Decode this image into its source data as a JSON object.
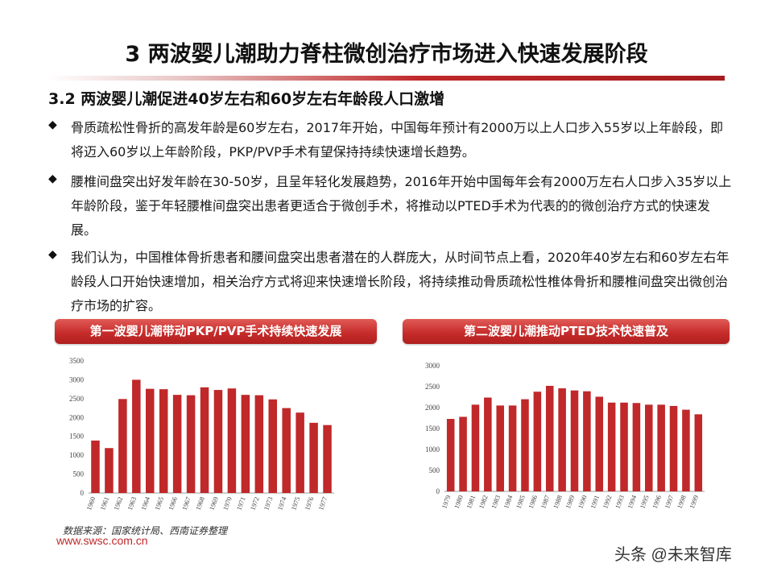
{
  "slide": {
    "title": "3  两波婴儿潮助力脊柱微创治疗市场进入快速发展阶段",
    "subtitle": "3.2 两波婴儿潮促进40岁左右和60岁左右年龄段人口激增",
    "bullets": [
      "骨质疏松性骨折的高发年龄是60岁左右，2017年开始，中国每年预计有2000万以上人口步入55岁以上年龄段，即将迈入60岁以上年龄阶段，PKP/PVP手术有望保持持续快速增长趋势。",
      "腰椎间盘突出好发年龄在30-50岁，且呈年轻化发展趋势，2016年开始中国每年会有2000万左右人口步入35岁以上年龄阶段，鉴于年轻腰椎间盘突出患者更适合于微创手术，将推动以PTED手术为代表的的微创治疗方式的快速发展。",
      "我们认为，中国椎体骨折患者和腰间盘突出患者潜在的人群庞大，从时间节点上看，2020年40岁左右和60岁左右年龄段人口开始快速增加，相关治疗方式将迎来快速增长阶段，将持续推动骨质疏松性椎体骨折和腰椎间盘突出微创治疗市场的扩容。"
    ],
    "bullet_symbol": "◆",
    "source": "数据来源：国家统计局、西南证券整理",
    "website": "www.swsc.com.cn",
    "watermark": "头条 @未来智库",
    "colors": {
      "accent": "#c0282a",
      "bar": "#c0282a"
    }
  },
  "chart_data": [
    {
      "type": "bar",
      "title": "第一波婴儿潮带动PKP/PVP手术持续快速发展",
      "categories": [
        "1960",
        "1961",
        "1962",
        "1963",
        "1964",
        "1965",
        "1966",
        "1967",
        "1968",
        "1969",
        "1970",
        "1971",
        "1972",
        "1973",
        "1974",
        "1975",
        "1976",
        "1977"
      ],
      "values": [
        1390,
        1190,
        2490,
        3000,
        2760,
        2750,
        2600,
        2590,
        2800,
        2730,
        2770,
        2600,
        2590,
        2480,
        2250,
        2130,
        1860,
        1800
      ],
      "yticks": [
        "0",
        "500",
        "1000",
        "1500",
        "2000",
        "2500",
        "3000",
        "3500"
      ],
      "ylim": [
        0,
        3500
      ],
      "grid": false
    },
    {
      "type": "bar",
      "title": "第二波婴儿潮推动PTED技术快速普及",
      "categories": [
        "1979",
        "1980",
        "1981",
        "1982",
        "1983",
        "1984",
        "1985",
        "1986",
        "1987",
        "1988",
        "1989",
        "1990",
        "1991",
        "1992",
        "1993",
        "1994",
        "1995",
        "1996",
        "1997",
        "1998",
        "1999"
      ],
      "values": [
        1730,
        1780,
        2070,
        2240,
        2050,
        2050,
        2200,
        2380,
        2520,
        2460,
        2410,
        2390,
        2260,
        2120,
        2120,
        2110,
        2070,
        2070,
        2040,
        1950,
        1840
      ],
      "yticks": [
        "0",
        "500",
        "1000",
        "1500",
        "2000",
        "2500",
        "3000"
      ],
      "ylim": [
        0,
        3000
      ],
      "grid": false
    }
  ]
}
